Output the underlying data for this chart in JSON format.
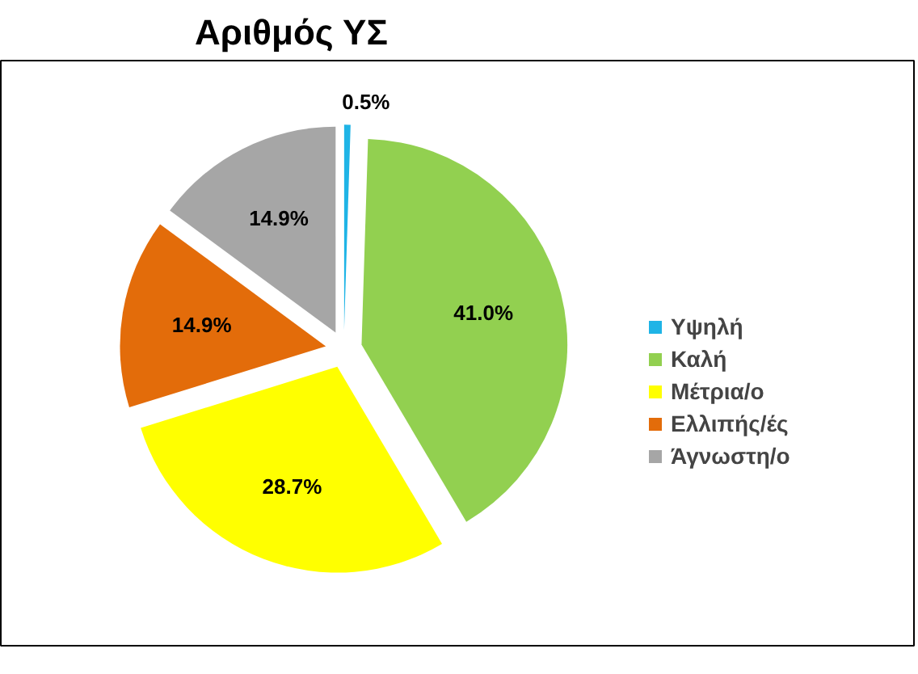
{
  "chart_data": {
    "type": "pie",
    "title": "Αριθμός ΥΣ",
    "categories": [
      "Υψηλή",
      "Καλή",
      "Μέτρια/ο",
      "Ελλιπής/ές",
      "Άγνωστη/ο"
    ],
    "values": [
      0.5,
      41.0,
      28.7,
      14.9,
      14.9
    ],
    "colors": [
      "#1fb4e6",
      "#92d050",
      "#ffff00",
      "#e36c0a",
      "#a6a6a6"
    ],
    "value_labels": [
      "0.5%",
      "41.0%",
      "28.7%",
      "14.9%",
      "14.9%"
    ],
    "legend": "right"
  }
}
